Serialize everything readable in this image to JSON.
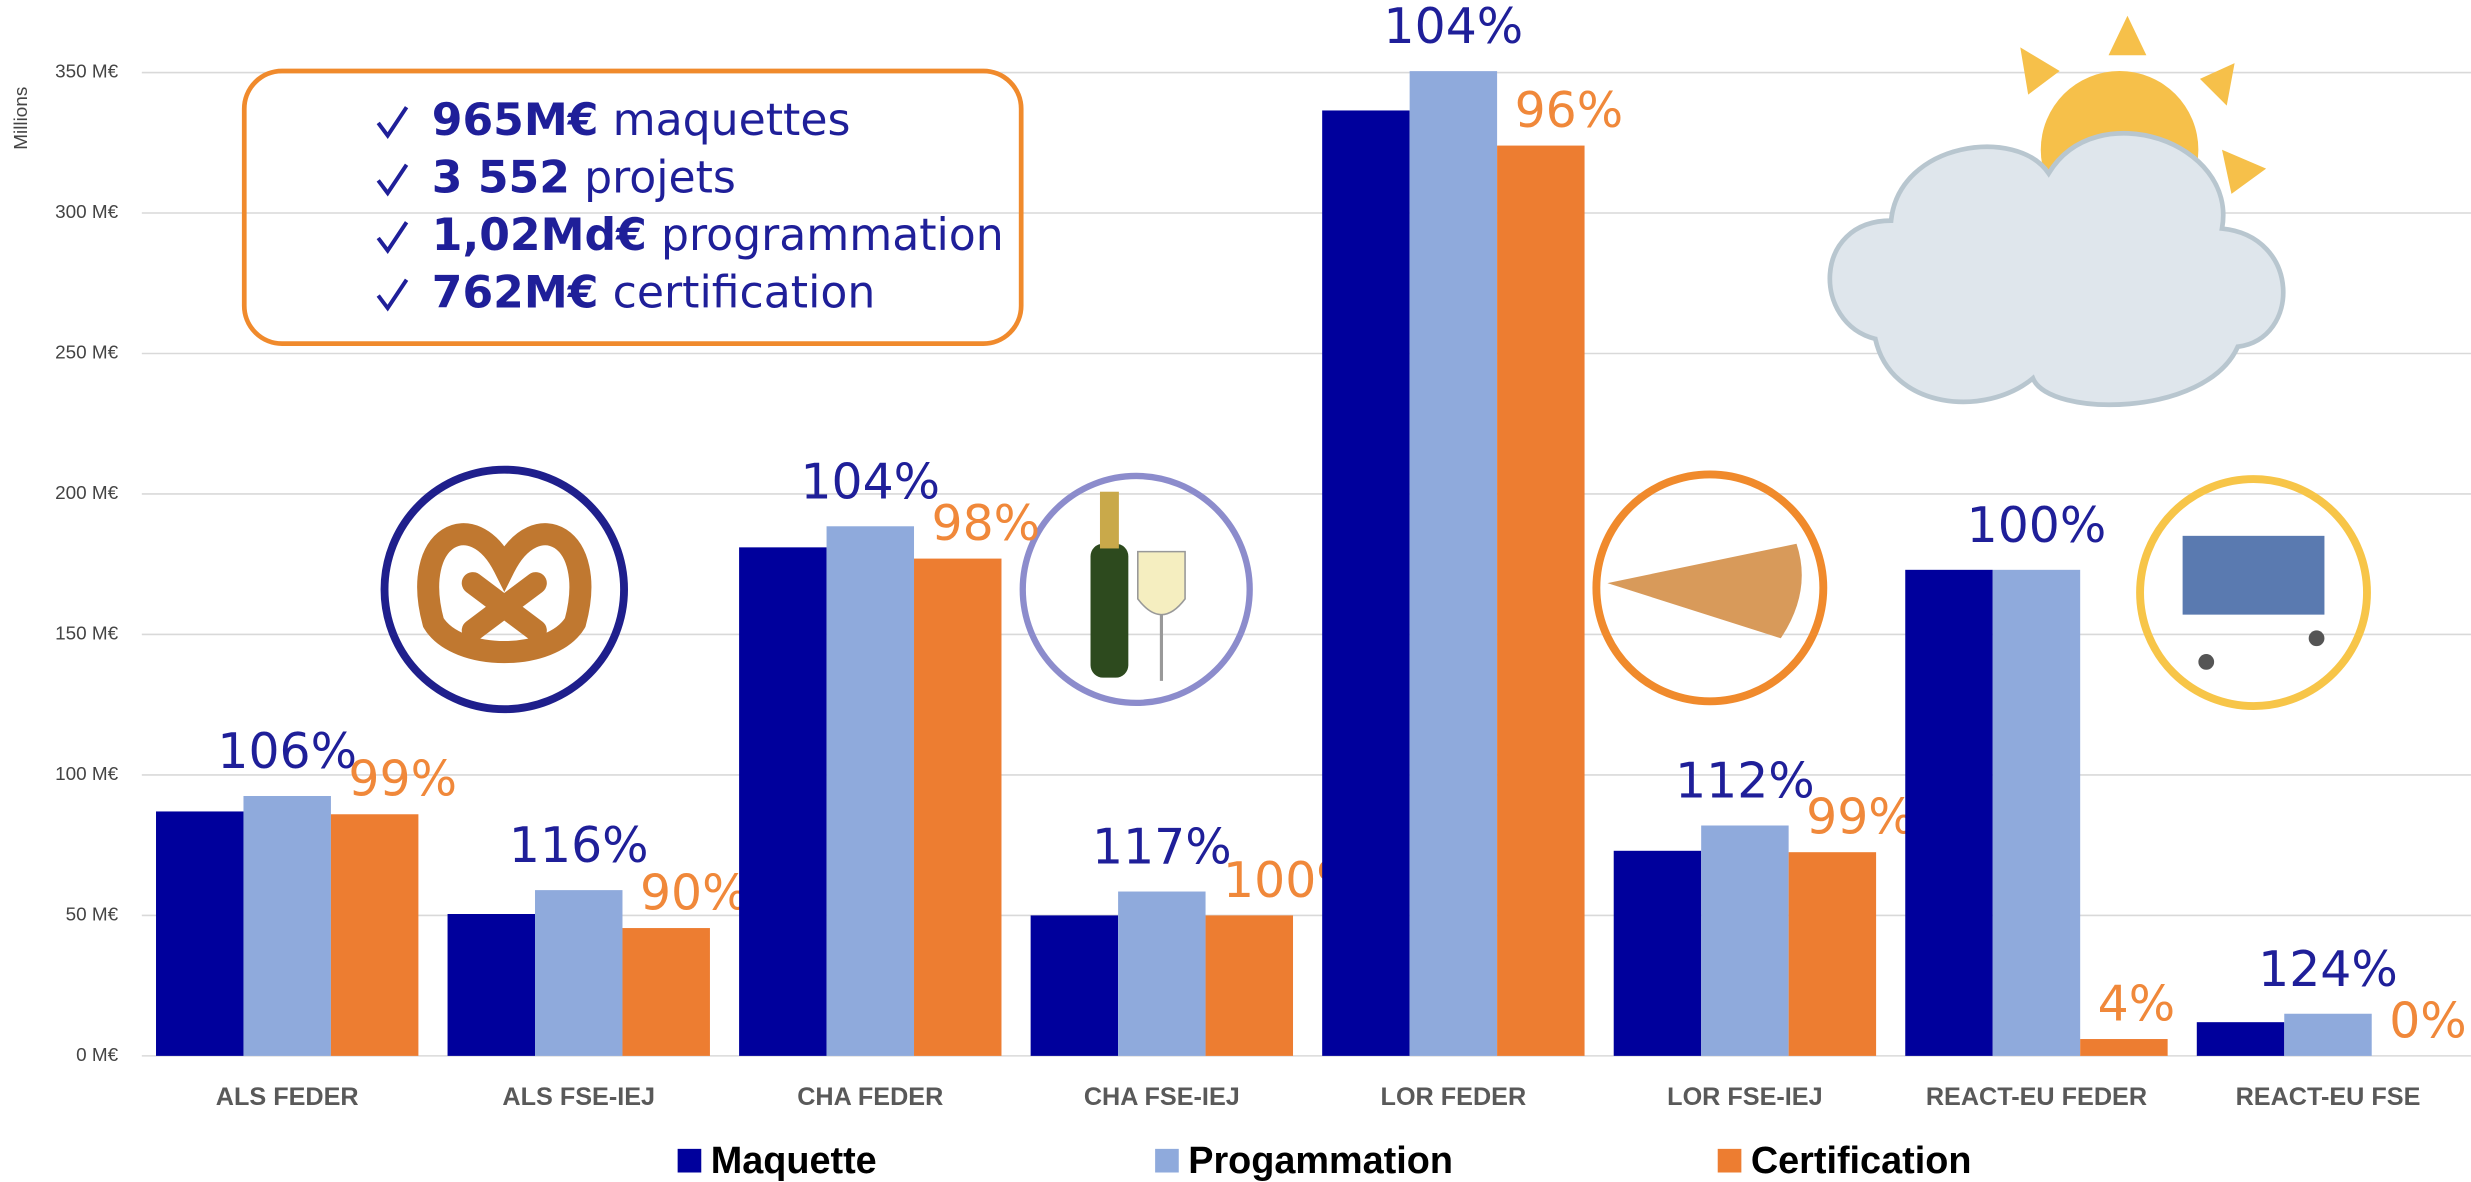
{
  "chart_data": {
    "type": "bar",
    "y_axis_label": "Millions",
    "categories": [
      "ALS FEDER",
      "ALS FSE-IEJ",
      "CHA FEDER",
      "CHA FSE-IEJ",
      "LOR FEDER",
      "LOR FSE-IEJ",
      "REACT-EU FEDER",
      "REACT-EU FSE"
    ],
    "series": [
      {
        "name": "Maquette",
        "color": "#00009c",
        "values": [
          87,
          50.5,
          181,
          50,
          336.5,
          73,
          173,
          12
        ]
      },
      {
        "name": "Progammation",
        "color": "#8faadc",
        "values": [
          92.5,
          59,
          188.5,
          58.5,
          350.5,
          82,
          173,
          15
        ]
      },
      {
        "name": "Certification",
        "color": "#ed7d31",
        "values": [
          86,
          45.5,
          177,
          50,
          324,
          72.5,
          6,
          0
        ]
      }
    ],
    "rate_labels": {
      "programmation": {
        "color": "#1f1f99",
        "labels": [
          "106%",
          "116%",
          "104%",
          "117%",
          "104%",
          "112%",
          "100%",
          "124%"
        ]
      },
      "certification": {
        "color": "#f0883a",
        "labels": [
          "99%",
          "90%",
          "98%",
          "100%",
          "96%",
          "99%",
          "4%",
          "0%"
        ]
      }
    },
    "ylim": [
      0,
      350
    ],
    "yticks": [
      {
        "value": 0,
        "label": "0 M€"
      },
      {
        "value": 50,
        "label": "50 M€"
      },
      {
        "value": 100,
        "label": "100 M€"
      },
      {
        "value": 150,
        "label": "150 M€"
      },
      {
        "value": 200,
        "label": "200 M€"
      },
      {
        "value": 250,
        "label": "250 M€"
      },
      {
        "value": 300,
        "label": "300 M€"
      },
      {
        "value": 350,
        "label": "350 M€"
      }
    ],
    "grid": true,
    "legend": "bottom",
    "summary": [
      {
        "bold": "965M€",
        "text": "maquettes"
      },
      {
        "bold": "3 552",
        "text": "projets"
      },
      {
        "bold": "1,02Md€",
        "text": "programmation"
      },
      {
        "bold": "762M€",
        "text": "certification"
      }
    ]
  }
}
